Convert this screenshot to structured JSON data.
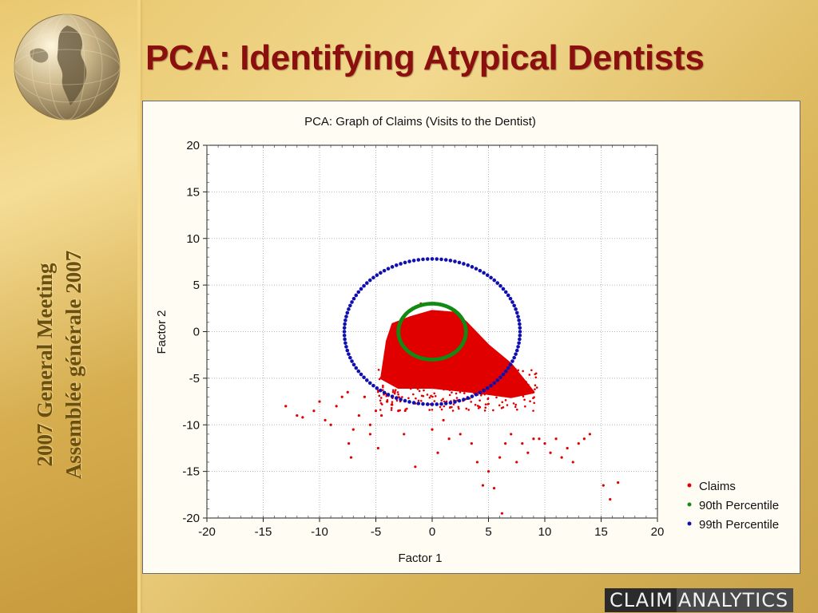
{
  "slide": {
    "title": "PCA: Identifying Atypical Dentists",
    "side_line1": "2007 General Meeting",
    "side_line2": "Assemblée générale 2007",
    "logo_part1": "CLAIM",
    "logo_part2": "ANALYTICS"
  },
  "colors": {
    "title": "#8b0f0f",
    "claims": "#e00000",
    "p90": "#138a13",
    "p99": "#1010b0",
    "gold": "#e3be62"
  },
  "chart_data": {
    "type": "scatter",
    "title": "PCA: Graph of Claims (Visits to the Dentist)",
    "xlabel": "Factor 1",
    "ylabel": "Factor 2",
    "xlim": [
      -20,
      20
    ],
    "ylim": [
      -20,
      20
    ],
    "xticks": [
      -20,
      -15,
      -10,
      -5,
      0,
      5,
      10,
      15,
      20
    ],
    "yticks": [
      20,
      15,
      10,
      5,
      0,
      -5,
      -10,
      -15,
      -20
    ],
    "grid": true,
    "legend_position": "bottom-right",
    "legend": [
      "Claims",
      "90th Percentile",
      "99th Percentile"
    ],
    "series": [
      {
        "name": "Claims",
        "color": "#e00000",
        "dense_region": [
          [
            -4,
            -1
          ],
          [
            -3.5,
            0.8
          ],
          [
            -2,
            1.5
          ],
          [
            0,
            2.2
          ],
          [
            2,
            2
          ],
          [
            3,
            1
          ],
          [
            5,
            -1.5
          ],
          [
            7,
            -3.5
          ],
          [
            9,
            -6.5
          ],
          [
            7,
            -7
          ],
          [
            4,
            -6.5
          ],
          [
            0,
            -6
          ],
          [
            -3,
            -6
          ],
          [
            -4.5,
            -5
          ]
        ],
        "x": [
          -13,
          -12,
          -11.5,
          -10.5,
          -10,
          -9.5,
          -9,
          -8.5,
          -8,
          -7.5,
          -7,
          -7.4,
          -7.2,
          -6.5,
          -6,
          -5.5,
          -5.5,
          -5,
          -4.8,
          -4.5,
          -4,
          -3,
          -2.5,
          -1.5,
          0,
          0.5,
          1,
          1.5,
          2.5,
          3.5,
          4,
          4.5,
          5,
          5.5,
          6,
          6.5,
          7,
          7.5,
          8,
          8.5,
          9,
          9.5,
          10,
          10.5,
          11,
          11.5,
          12,
          12.5,
          13,
          13.5,
          14,
          15.2,
          15.8,
          16.5,
          6.2,
          4.5,
          -1
        ],
        "y": [
          -8,
          -9,
          -9.2,
          -8.5,
          -7.5,
          -9.5,
          -10,
          -8,
          -7,
          -6.5,
          -10.5,
          -12,
          -13.5,
          -9,
          -7,
          -10,
          -11,
          -8.5,
          -12.5,
          -9,
          -7.5,
          -8.5,
          -11,
          -14.5,
          -10.5,
          -13,
          -9.5,
          -11.5,
          -11,
          -12,
          -14,
          -16.5,
          -15,
          -16.8,
          -13.5,
          -12,
          -11,
          -14,
          -12,
          -13,
          -11.5,
          -11.5,
          -12,
          -13,
          -11.5,
          -13.5,
          -12.5,
          -14,
          -12,
          -11.5,
          -11,
          -16.5,
          -18,
          -16.2,
          -19.5,
          -1,
          3
        ]
      },
      {
        "name": "90th Percentile",
        "color": "#138a13",
        "center": [
          0,
          0
        ],
        "radius_x": 3,
        "radius_y": 3
      },
      {
        "name": "99th Percentile",
        "color": "#1010b0",
        "center": [
          0,
          0
        ],
        "radius_x": 7.8,
        "radius_y": 7.8
      }
    ]
  }
}
